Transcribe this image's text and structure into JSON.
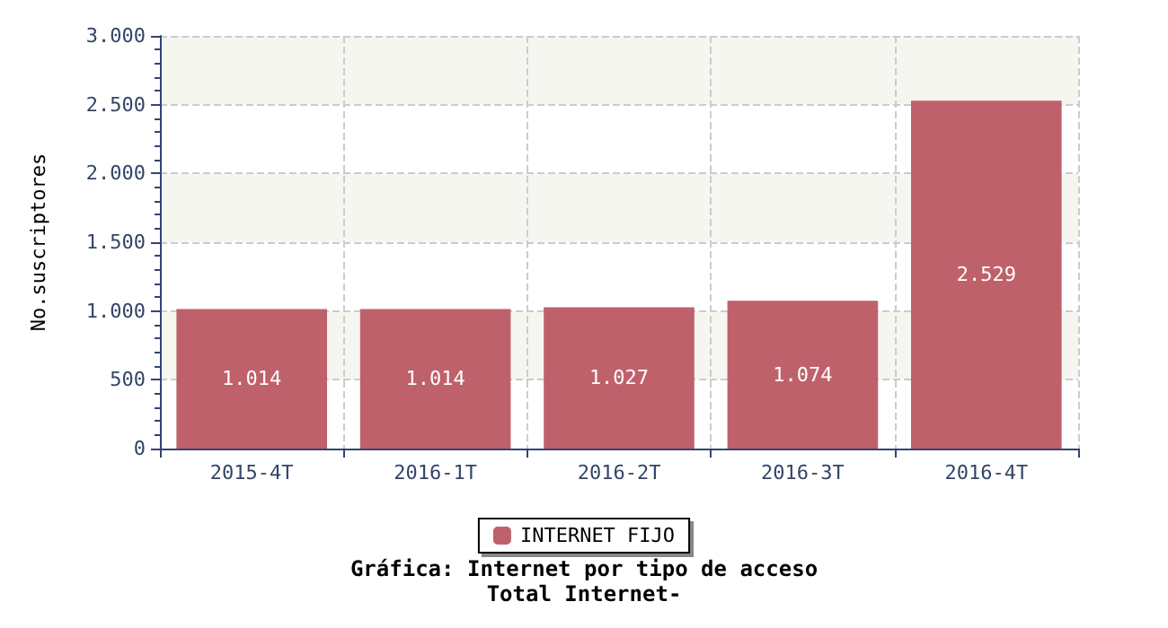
{
  "chart_data": {
    "type": "bar",
    "title": "Gráfica: Internet por tipo de acceso",
    "subtitle": "Total Internet-",
    "ylabel": "No.suscriptores",
    "categories": [
      "2015-4T",
      "2016-1T",
      "2016-2T",
      "2016-3T",
      "2016-4T"
    ],
    "series": [
      {
        "name": "INTERNET FIJO",
        "color": "#bf616b",
        "values": [
          1014,
          1014,
          1027,
          1074,
          2529
        ],
        "value_labels": [
          "1.014",
          "1.014",
          "1.027",
          "1.074",
          "2.529"
        ]
      }
    ],
    "ylim": [
      0,
      3000
    ],
    "yticks": [
      {
        "value": 0,
        "label": "0"
      },
      {
        "value": 500,
        "label": "500"
      },
      {
        "value": 1000,
        "label": "1.000"
      },
      {
        "value": 1500,
        "label": "1.500"
      },
      {
        "value": 2000,
        "label": "2.000"
      },
      {
        "value": 2500,
        "label": "2.500"
      },
      {
        "value": 3000,
        "label": "3.000"
      }
    ],
    "grid": true,
    "legend": "bottom"
  }
}
